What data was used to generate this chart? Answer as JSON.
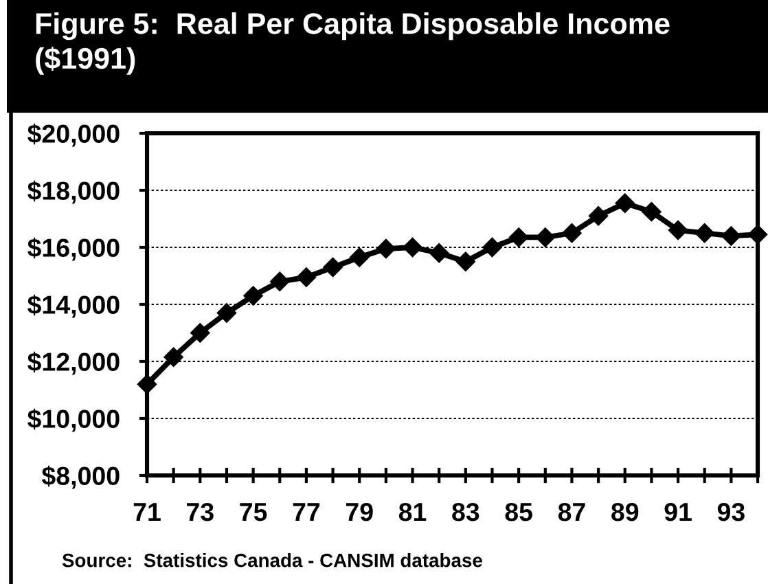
{
  "chart_data": {
    "type": "line",
    "title": "Figure 5:  Real Per Capita Disposable Income ($1991)",
    "x": [
      71,
      72,
      73,
      74,
      75,
      76,
      77,
      78,
      79,
      80,
      81,
      82,
      83,
      84,
      85,
      86,
      87,
      88,
      89,
      90,
      91,
      92,
      93,
      94
    ],
    "values": [
      11200,
      12150,
      13000,
      13700,
      14300,
      14800,
      14950,
      15300,
      15650,
      15950,
      16000,
      15800,
      15500,
      16000,
      16350,
      16350,
      16500,
      17100,
      17550,
      17250,
      16600,
      16500,
      16400,
      16450
    ],
    "color": "#000000",
    "marker": "diamond",
    "line_style": "solid",
    "xlim": [
      71,
      94
    ],
    "xticks": [
      71,
      {
        "value": 72,
        "label": null
      },
      73,
      {
        "value": 74,
        "label": null
      },
      75,
      {
        "value": 76,
        "label": null
      },
      77,
      {
        "value": 78,
        "label": null
      },
      79,
      {
        "value": 80,
        "label": null
      },
      81,
      {
        "value": 82,
        "label": null
      },
      83,
      {
        "value": 84,
        "label": null
      },
      85,
      {
        "value": 86,
        "label": null
      },
      87,
      {
        "value": 88,
        "label": null
      },
      89,
      {
        "value": 90,
        "label": null
      },
      91,
      {
        "value": 92,
        "label": null
      },
      93,
      {
        "value": 94,
        "label": null
      }
    ],
    "ylim": [
      8000,
      20000
    ],
    "yticks": [
      {
        "value": 8000,
        "label": "$8,000"
      },
      {
        "value": 10000,
        "label": "$10,000"
      },
      {
        "value": 12000,
        "label": "$12,000"
      },
      {
        "value": 14000,
        "label": "$14,000"
      },
      {
        "value": 16000,
        "label": "$16,000"
      },
      {
        "value": 18000,
        "label": "$18,000"
      },
      {
        "value": 20000,
        "label": "$20,000"
      }
    ],
    "grid": "y",
    "annotations": [
      "Source:  Statistics Canada - CANSIM database"
    ]
  }
}
